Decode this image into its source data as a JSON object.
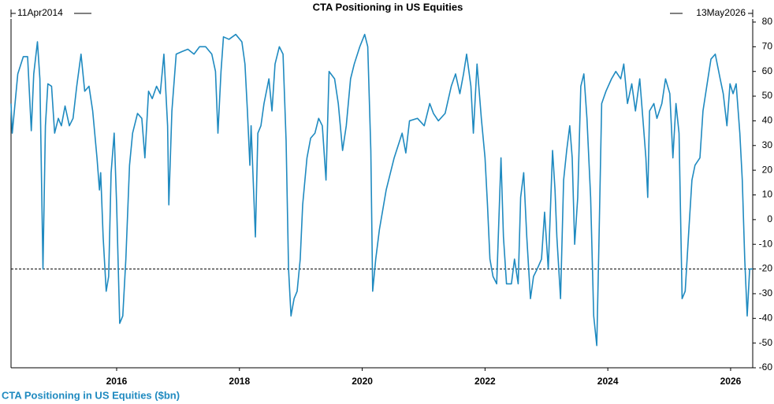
{
  "chart_data": {
    "type": "line",
    "title": "CTA Positioning in US Equities",
    "start_label": "11Apr2014",
    "end_label": "13May2026",
    "x": [
      2014.28,
      2014.3,
      2014.39,
      2014.48,
      2014.55,
      2014.61,
      2014.65,
      2014.71,
      2014.75,
      2014.8,
      2014.84,
      2014.88,
      2014.94,
      2014.99,
      2015.05,
      2015.1,
      2015.16,
      2015.23,
      2015.29,
      2015.35,
      2015.42,
      2015.48,
      2015.55,
      2015.61,
      2015.68,
      2015.72,
      2015.74,
      2015.78,
      2015.83,
      2015.87,
      2015.91,
      2015.96,
      2016.0,
      2016.05,
      2016.1,
      2016.15,
      2016.21,
      2016.26,
      2016.34,
      2016.41,
      2016.46,
      2016.52,
      2016.58,
      2016.65,
      2016.71,
      2016.77,
      2016.83,
      2016.85,
      2016.9,
      2016.97,
      2017.06,
      2017.16,
      2017.26,
      2017.35,
      2017.45,
      2017.55,
      2017.61,
      2017.65,
      2017.7,
      2017.74,
      2017.83,
      2017.94,
      2018.04,
      2018.09,
      2018.13,
      2018.17,
      2018.19,
      2018.26,
      2018.3,
      2018.35,
      2018.4,
      2018.48,
      2018.53,
      2018.58,
      2018.65,
      2018.71,
      2018.76,
      2018.8,
      2018.84,
      2018.89,
      2018.94,
      2018.99,
      2019.03,
      2019.1,
      2019.16,
      2019.23,
      2019.29,
      2019.35,
      2019.41,
      2019.46,
      2019.55,
      2019.61,
      2019.68,
      2019.74,
      2019.81,
      2019.87,
      2019.96,
      2020.04,
      2020.09,
      2020.14,
      2020.17,
      2020.22,
      2020.28,
      2020.39,
      2020.52,
      2020.65,
      2020.71,
      2020.77,
      2020.9,
      2021.01,
      2021.1,
      2021.16,
      2021.24,
      2021.35,
      2021.45,
      2021.52,
      2021.59,
      2021.65,
      2021.7,
      2021.77,
      2021.81,
      2021.87,
      2021.94,
      2022.0,
      2022.04,
      2022.08,
      2022.13,
      2022.19,
      2022.26,
      2022.3,
      2022.35,
      2022.43,
      2022.48,
      2022.54,
      2022.58,
      2022.63,
      2022.68,
      2022.74,
      2022.79,
      2022.85,
      2022.92,
      2022.97,
      2023.03,
      2023.1,
      2023.14,
      2023.17,
      2023.23,
      2023.28,
      2023.33,
      2023.38,
      2023.42,
      2023.46,
      2023.51,
      2023.56,
      2023.61,
      2023.66,
      2023.72,
      2023.77,
      2023.82,
      2023.85,
      2023.9,
      2023.97,
      2024.06,
      2024.13,
      2024.21,
      2024.26,
      2024.32,
      2024.39,
      2024.45,
      2024.52,
      2024.58,
      2024.62,
      2024.65,
      2024.68,
      2024.75,
      2024.8,
      2024.88,
      2024.94,
      2025.01,
      2025.06,
      2025.11,
      2025.16,
      2025.21,
      2025.26,
      2025.32,
      2025.37,
      2025.42,
      2025.5,
      2025.55,
      2025.63,
      2025.68,
      2025.75,
      2025.83,
      2025.88,
      2025.94,
      2025.99,
      2026.04,
      2026.09,
      2026.15,
      2026.19,
      2026.23,
      2026.27,
      2026.31,
      2026.36
    ],
    "series": [
      {
        "name": "CTA Positioning in US Equities ($bn)",
        "color": "#1f8ac0",
        "values": [
          47,
          35,
          59,
          66,
          66,
          36,
          59,
          72,
          57,
          -20,
          38,
          55,
          54,
          35,
          41,
          38,
          46,
          38,
          41,
          54,
          67,
          52,
          54,
          44,
          25,
          12,
          19,
          -7,
          -29,
          -23,
          19,
          35,
          6,
          -42,
          -39,
          -16,
          22,
          35,
          43,
          41,
          25,
          52,
          49,
          54,
          51,
          67,
          38,
          6,
          44,
          67,
          68,
          69,
          67,
          70,
          70,
          67,
          60,
          35,
          60,
          74,
          73,
          75,
          72,
          63,
          44,
          22,
          38,
          -7,
          35,
          38,
          47,
          57,
          44,
          63,
          70,
          67,
          32,
          -20,
          -39,
          -32,
          -29,
          -16,
          6,
          25,
          33,
          35,
          41,
          38,
          16,
          60,
          57,
          47,
          28,
          38,
          57,
          63,
          70,
          75,
          70,
          28,
          -29,
          -16,
          -4,
          12,
          25,
          35,
          27,
          40,
          41,
          38,
          47,
          43,
          40,
          43,
          54,
          59,
          51,
          59,
          67,
          54,
          35,
          63,
          41,
          25,
          6,
          -16,
          -23,
          -26,
          25,
          -7,
          -26,
          -26,
          -16,
          -26,
          9,
          19,
          -7,
          -32,
          -23,
          -20,
          -16,
          3,
          -20,
          28,
          12,
          -7,
          -32,
          16,
          28,
          38,
          25,
          -10,
          9,
          54,
          59,
          41,
          9,
          -39,
          -51,
          -16,
          47,
          52,
          57,
          60,
          57,
          63,
          47,
          55,
          44,
          57,
          38,
          25,
          9,
          44,
          47,
          41,
          47,
          57,
          51,
          25,
          47,
          35,
          -32,
          -29,
          -4,
          16,
          22,
          25,
          44,
          57,
          65,
          67,
          57,
          51,
          38,
          55,
          51,
          55,
          35,
          16,
          -16,
          -39,
          -20,
          -20
        ]
      }
    ],
    "hline": -20,
    "xlim": [
      2014.28,
      2026.36
    ],
    "xticks": [
      2016,
      2018,
      2020,
      2022,
      2024,
      2026
    ],
    "ylim": [
      -60,
      80
    ],
    "yticks": [
      -60,
      -50,
      -40,
      -30,
      -20,
      -10,
      0,
      10,
      20,
      30,
      40,
      50,
      60,
      70,
      80
    ]
  }
}
